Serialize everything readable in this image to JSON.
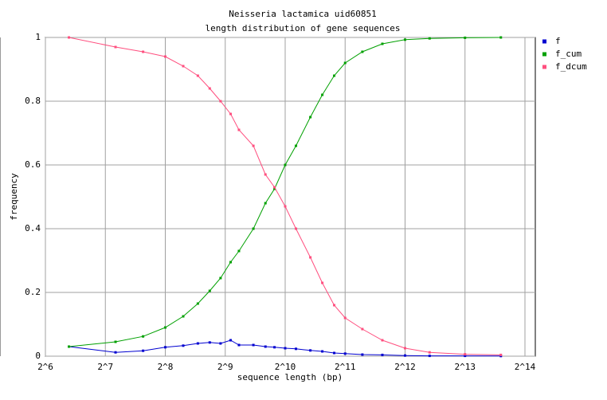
{
  "chart_data": {
    "type": "line",
    "title": "Neisseria lactamica uid60851",
    "subtitle": "length distribution of gene sequences",
    "x_label": "sequence length (bp)",
    "y_label": "frequency",
    "x_scale": "log2",
    "x": [
      84,
      144,
      198,
      256,
      315,
      373,
      428,
      485,
      545,
      600,
      709,
      815,
      905,
      1024,
      1160,
      1370,
      1573,
      1805,
      2048,
      2500,
      3150,
      4096,
      5440,
      8192,
      12400
    ],
    "series": [
      {
        "name": "f",
        "color": "#0000d0",
        "values": [
          0.03,
          0.012,
          0.017,
          0.028,
          0.033,
          0.04,
          0.043,
          0.04,
          0.05,
          0.035,
          0.035,
          0.03,
          0.028,
          0.025,
          0.023,
          0.018,
          0.015,
          0.01,
          0.008,
          0.005,
          0.004,
          0.002,
          0.001,
          0.001,
          0.0005
        ]
      },
      {
        "name": "f_cum",
        "color": "#00a000",
        "values": [
          0.03,
          0.045,
          0.062,
          0.09,
          0.125,
          0.165,
          0.205,
          0.245,
          0.295,
          0.33,
          0.4,
          0.48,
          0.525,
          0.6,
          0.66,
          0.75,
          0.82,
          0.88,
          0.92,
          0.955,
          0.98,
          0.993,
          0.997,
          0.999,
          1.0
        ]
      },
      {
        "name": "f_dcum",
        "color": "#ff4f7f",
        "values": [
          1.0,
          0.97,
          0.955,
          0.94,
          0.91,
          0.88,
          0.84,
          0.8,
          0.76,
          0.71,
          0.66,
          0.57,
          0.53,
          0.47,
          0.4,
          0.31,
          0.23,
          0.16,
          0.12,
          0.085,
          0.05,
          0.025,
          0.012,
          0.006,
          0.004
        ]
      }
    ],
    "xlim": [
      64,
      16384
    ],
    "xticks": [
      {
        "value": 64,
        "label": "2^6"
      },
      {
        "value": 128,
        "label": "2^7"
      },
      {
        "value": 256,
        "label": "2^8"
      },
      {
        "value": 512,
        "label": "2^9"
      },
      {
        "value": 1024,
        "label": "2^10"
      },
      {
        "value": 2048,
        "label": "2^11"
      },
      {
        "value": 4096,
        "label": "2^12"
      },
      {
        "value": 8192,
        "label": "2^13"
      },
      {
        "value": 16384,
        "label": "2^14"
      }
    ],
    "ylim": [
      0,
      1
    ],
    "yticks": [
      0,
      0.2,
      0.4,
      0.6,
      0.8,
      1
    ],
    "grid": true,
    "legend": "right"
  }
}
